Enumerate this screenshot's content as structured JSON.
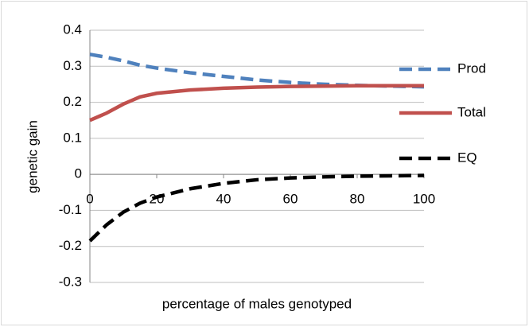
{
  "chart_data": {
    "type": "line",
    "x_label": "percentage of males genotyped",
    "y_label": "genetic gain",
    "x": [
      0,
      5,
      10,
      15,
      20,
      30,
      40,
      50,
      60,
      70,
      80,
      90,
      100
    ],
    "series": [
      {
        "name": "Prod",
        "color": "#4f81bd",
        "dash": true,
        "values": [
          0.333,
          0.325,
          0.315,
          0.303,
          0.295,
          0.282,
          0.272,
          0.262,
          0.255,
          0.25,
          0.247,
          0.245,
          0.243
        ]
      },
      {
        "name": "Total",
        "color": "#c0504d",
        "dash": false,
        "values": [
          0.15,
          0.17,
          0.195,
          0.215,
          0.225,
          0.234,
          0.239,
          0.242,
          0.244,
          0.245,
          0.246,
          0.246,
          0.246
        ]
      },
      {
        "name": "EQ",
        "color": "#000000",
        "dash": true,
        "values": [
          -0.185,
          -0.14,
          -0.105,
          -0.08,
          -0.063,
          -0.04,
          -0.025,
          -0.015,
          -0.01,
          -0.007,
          -0.005,
          -0.004,
          -0.003
        ]
      }
    ],
    "xlim": [
      0,
      100
    ],
    "xticks": [
      0,
      20,
      40,
      60,
      80,
      100
    ],
    "ylim": [
      -0.3,
      0.4
    ],
    "yticks": [
      -0.3,
      -0.2,
      -0.1,
      0,
      0.1,
      0.2,
      0.3,
      0.4
    ],
    "grid": true,
    "legend": "right"
  }
}
